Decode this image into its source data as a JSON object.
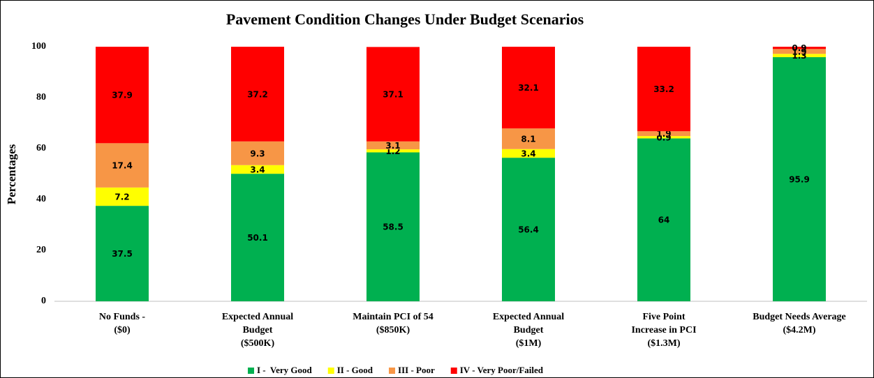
{
  "chart_data": {
    "type": "stacked_bar",
    "title": "Pavement Condition Changes Under Budget Scenarios",
    "y_label": "Percentages",
    "categories": [
      [
        "No Funds -",
        "($0)"
      ],
      [
        "Expected Annual",
        "Budget",
        "($500K)"
      ],
      [
        "Maintain PCI of 54",
        "($850K)"
      ],
      [
        "Expected Annual",
        "Budget",
        "($1M)"
      ],
      [
        "Five Point",
        "Increase in PCI",
        "($1.3M)"
      ],
      [
        "Budget Needs Average",
        "($4.2M)"
      ]
    ],
    "series": [
      {
        "name": "I -  Very Good",
        "color": "#00b050",
        "values": [
          37.5,
          50.1,
          58.5,
          56.4,
          64,
          95.9
        ]
      },
      {
        "name": "II - Good",
        "color": "#ffff00",
        "values": [
          7.2,
          3.4,
          1.2,
          3.4,
          0.9,
          1.3
        ]
      },
      {
        "name": "III - Poor",
        "color": "#f79646",
        "values": [
          17.4,
          9.3,
          3.1,
          8.1,
          1.9,
          1.9
        ]
      },
      {
        "name": "IV - Very Poor/Failed",
        "color": "#ff0000",
        "values": [
          37.9,
          37.2,
          37.1,
          32.1,
          33.2,
          0.9
        ]
      }
    ],
    "ylim": [
      0,
      100
    ],
    "yticks": [
      0,
      20,
      40,
      60,
      80,
      100
    ],
    "grid": false,
    "legend": "bottom"
  }
}
